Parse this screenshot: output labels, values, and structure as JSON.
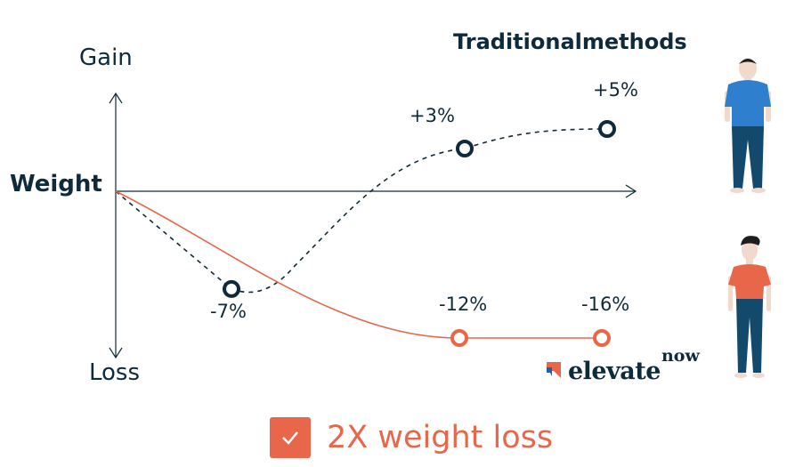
{
  "labels": {
    "gain": "Gain",
    "weight": "Weight",
    "loss": "Loss",
    "legend_traditional": "Traditionalmethods"
  },
  "chart_data": {
    "type": "line",
    "ylabel": "Weight",
    "ytop_label": "Gain",
    "ybottom_label": "Loss",
    "grid": false,
    "series": [
      {
        "name": "Traditionalmethods",
        "style": "dashed",
        "color": "#0f2a3a",
        "values": [
          0,
          -7,
          3,
          5
        ],
        "labels": [
          "",
          "-7%",
          "+3%",
          "+5%"
        ]
      },
      {
        "name": "elevatenow",
        "style": "solid",
        "color": "#e8674a",
        "values": [
          0,
          -12,
          -16
        ],
        "labels": [
          "",
          "-12%",
          "-16%"
        ]
      }
    ]
  },
  "logo": {
    "word": "elevate",
    "sup": "now"
  },
  "cta": {
    "text": "2X weight loss",
    "icon": "check-icon"
  },
  "colors": {
    "navy": "#0f2a3a",
    "orange": "#e8674a",
    "blue_shirt": "#2f7fcf",
    "pants": "#134a6c"
  }
}
